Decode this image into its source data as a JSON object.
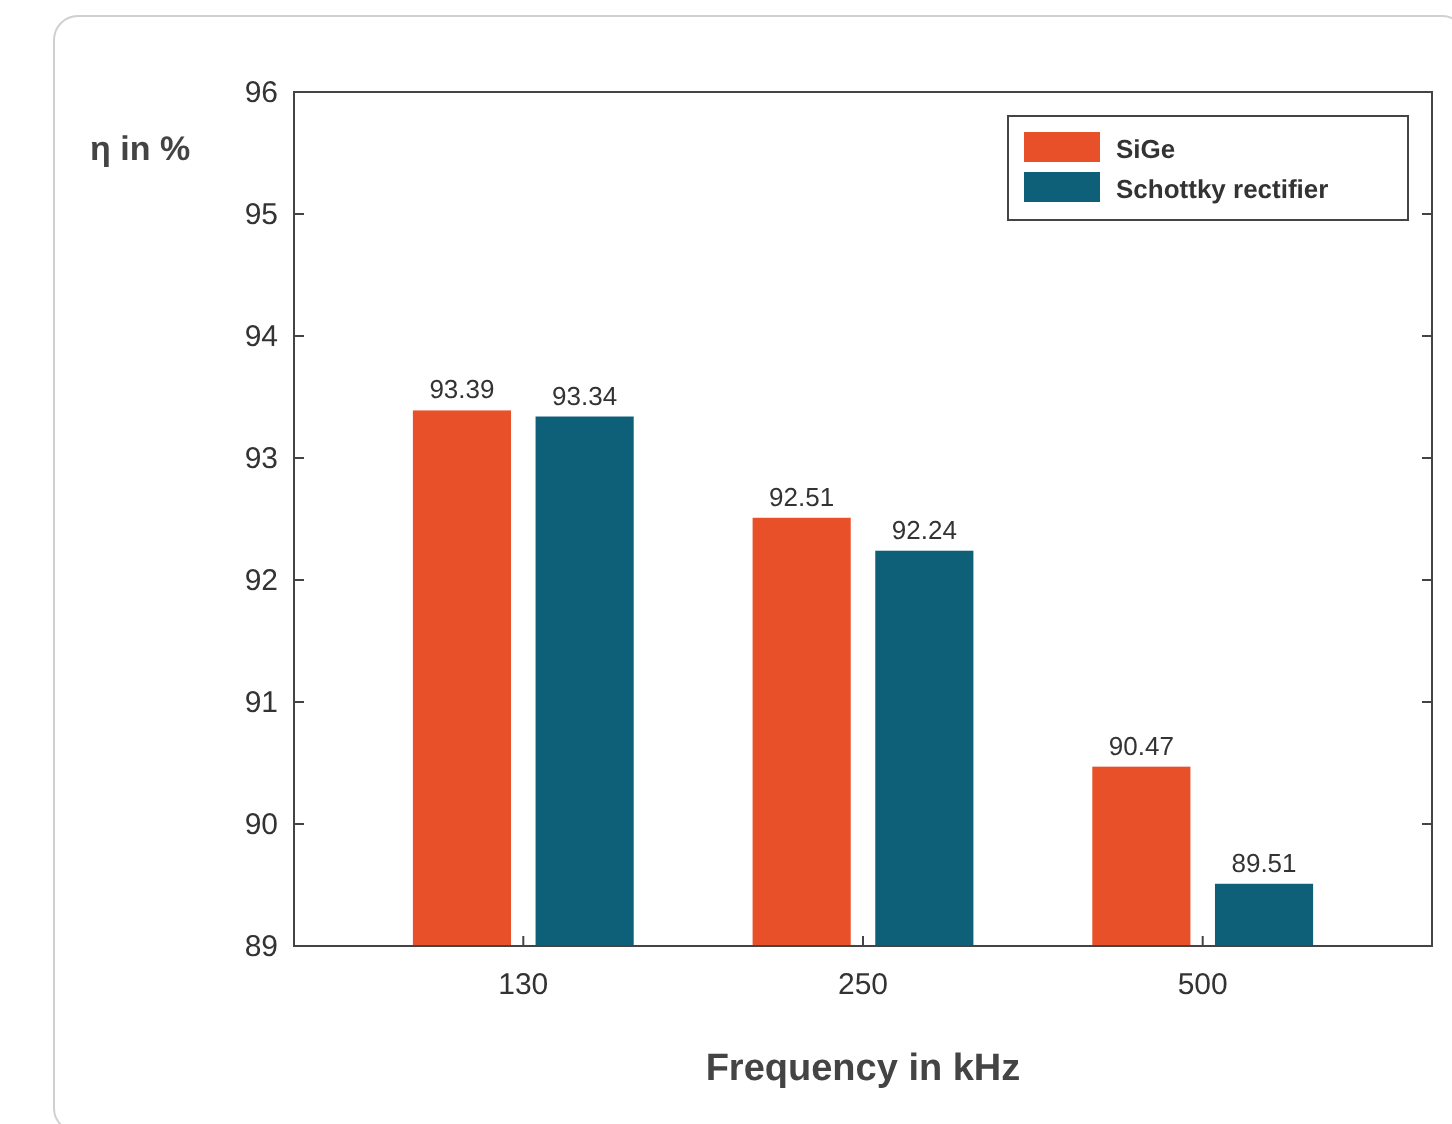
{
  "chart_data": {
    "type": "bar",
    "xlabel": "Frequency in kHz",
    "ylabel": "η in %",
    "categories": [
      "130",
      "250",
      "500"
    ],
    "series": [
      {
        "name": "SiGe",
        "color": "#e8502a",
        "values": [
          93.39,
          92.51,
          90.47
        ]
      },
      {
        "name": "Schottky rectifier",
        "color": "#0d6078",
        "values": [
          93.34,
          92.24,
          89.51
        ]
      }
    ],
    "ylim": [
      89,
      96
    ],
    "yticks": [
      89,
      90,
      91,
      92,
      93,
      94,
      95,
      96
    ],
    "data_labels": true,
    "legend": "top right",
    "grid": false
  }
}
